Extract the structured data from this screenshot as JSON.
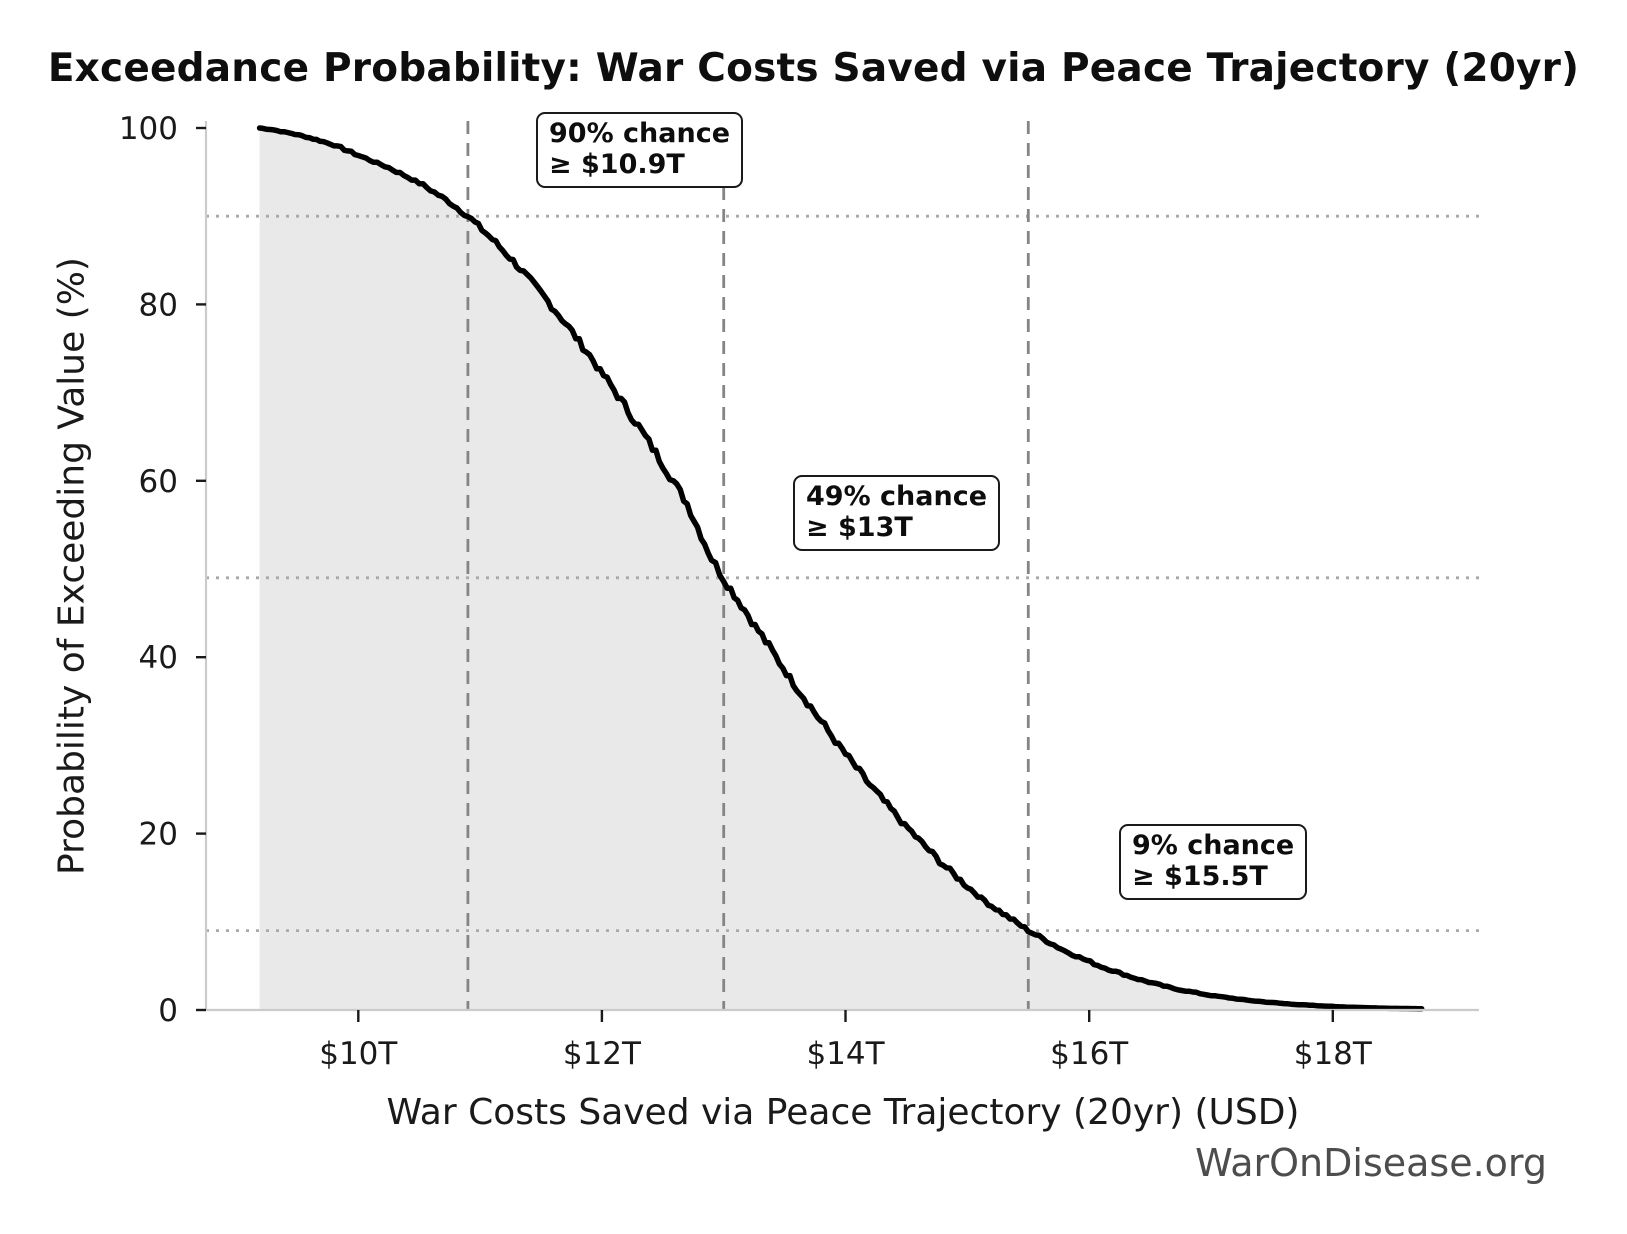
{
  "title": "Exceedance Probability: War Costs Saved via Peace Trajectory (20yr)",
  "watermark": "WarOnDisease.org",
  "annotations": [
    {
      "line1": "90% chance",
      "line2": "≥ $10.9T"
    },
    {
      "line1": "49% chance",
      "line2": "≥ $13T"
    },
    {
      "line1": "9% chance",
      "line2": "≥ $15.5T"
    }
  ],
  "chart_data": {
    "type": "line",
    "subtype": "exceedance-probability-curve",
    "fill_under": true,
    "grid": false,
    "legend": null,
    "title": "Exceedance Probability: War Costs Saved via Peace Trajectory (20yr)",
    "xlabel": "War Costs Saved via Peace Trajectory (20yr) (USD)",
    "ylabel": "Probability of Exceeding Value (%)",
    "x_unit": "trillion USD",
    "xlim": [
      8.75,
      19.2
    ],
    "ylim": [
      0,
      100
    ],
    "x_tick_values": [
      10,
      12,
      14,
      16,
      18
    ],
    "x_tick_labels": [
      "$10T",
      "$12T",
      "$14T",
      "$16T",
      "$18T"
    ],
    "y_tick_values": [
      0,
      20,
      40,
      60,
      80,
      100
    ],
    "y_tick_labels": [
      "0",
      "20",
      "40",
      "60",
      "80",
      "100"
    ],
    "key_points": [
      {
        "probability_pct": 90,
        "value_T": 10.9,
        "label": "90% chance ≥ $10.9T"
      },
      {
        "probability_pct": 49,
        "value_T": 13,
        "label": "49% chance ≥ $13T"
      },
      {
        "probability_pct": 9,
        "value_T": 15.5,
        "label": "9% chance ≥ $15.5T"
      }
    ],
    "curve_points": {
      "x": [
        9.19,
        9.3,
        9.45,
        9.6,
        9.8,
        10.0,
        10.25,
        10.5,
        10.75,
        10.9,
        11.1,
        11.3,
        11.5,
        11.7,
        11.9,
        12.1,
        12.3,
        12.5,
        12.7,
        12.9,
        13.0,
        13.2,
        13.4,
        13.6,
        13.8,
        14.0,
        14.2,
        14.4,
        14.6,
        14.8,
        15.0,
        15.2,
        15.5,
        15.8,
        16.1,
        16.4,
        16.7,
        17.0,
        17.3,
        17.6,
        17.9,
        18.2,
        18.5,
        18.73
      ],
      "y": [
        100,
        99.8,
        99.4,
        98.9,
        98.1,
        96.9,
        95.5,
        93.8,
        91.6,
        90.0,
        87.4,
        84.5,
        81.3,
        77.9,
        74.2,
        70.3,
        66.2,
        61.9,
        57.4,
        51.2,
        48.9,
        44.8,
        40.6,
        36.6,
        32.7,
        29.0,
        25.5,
        22.3,
        19.3,
        16.5,
        14.0,
        11.8,
        9.0,
        6.7,
        4.9,
        3.5,
        2.4,
        1.65,
        1.1,
        0.72,
        0.46,
        0.29,
        0.18,
        0.15
      ]
    },
    "colors": {
      "curve": "#000000",
      "fill": "#e9e9e9",
      "dashed_reference": "#858585",
      "dotted_reference": "#a9a9a9",
      "spine": "#cbcbcb",
      "tick": "#1a1a1a",
      "watermark": "#4d4d4d"
    }
  }
}
